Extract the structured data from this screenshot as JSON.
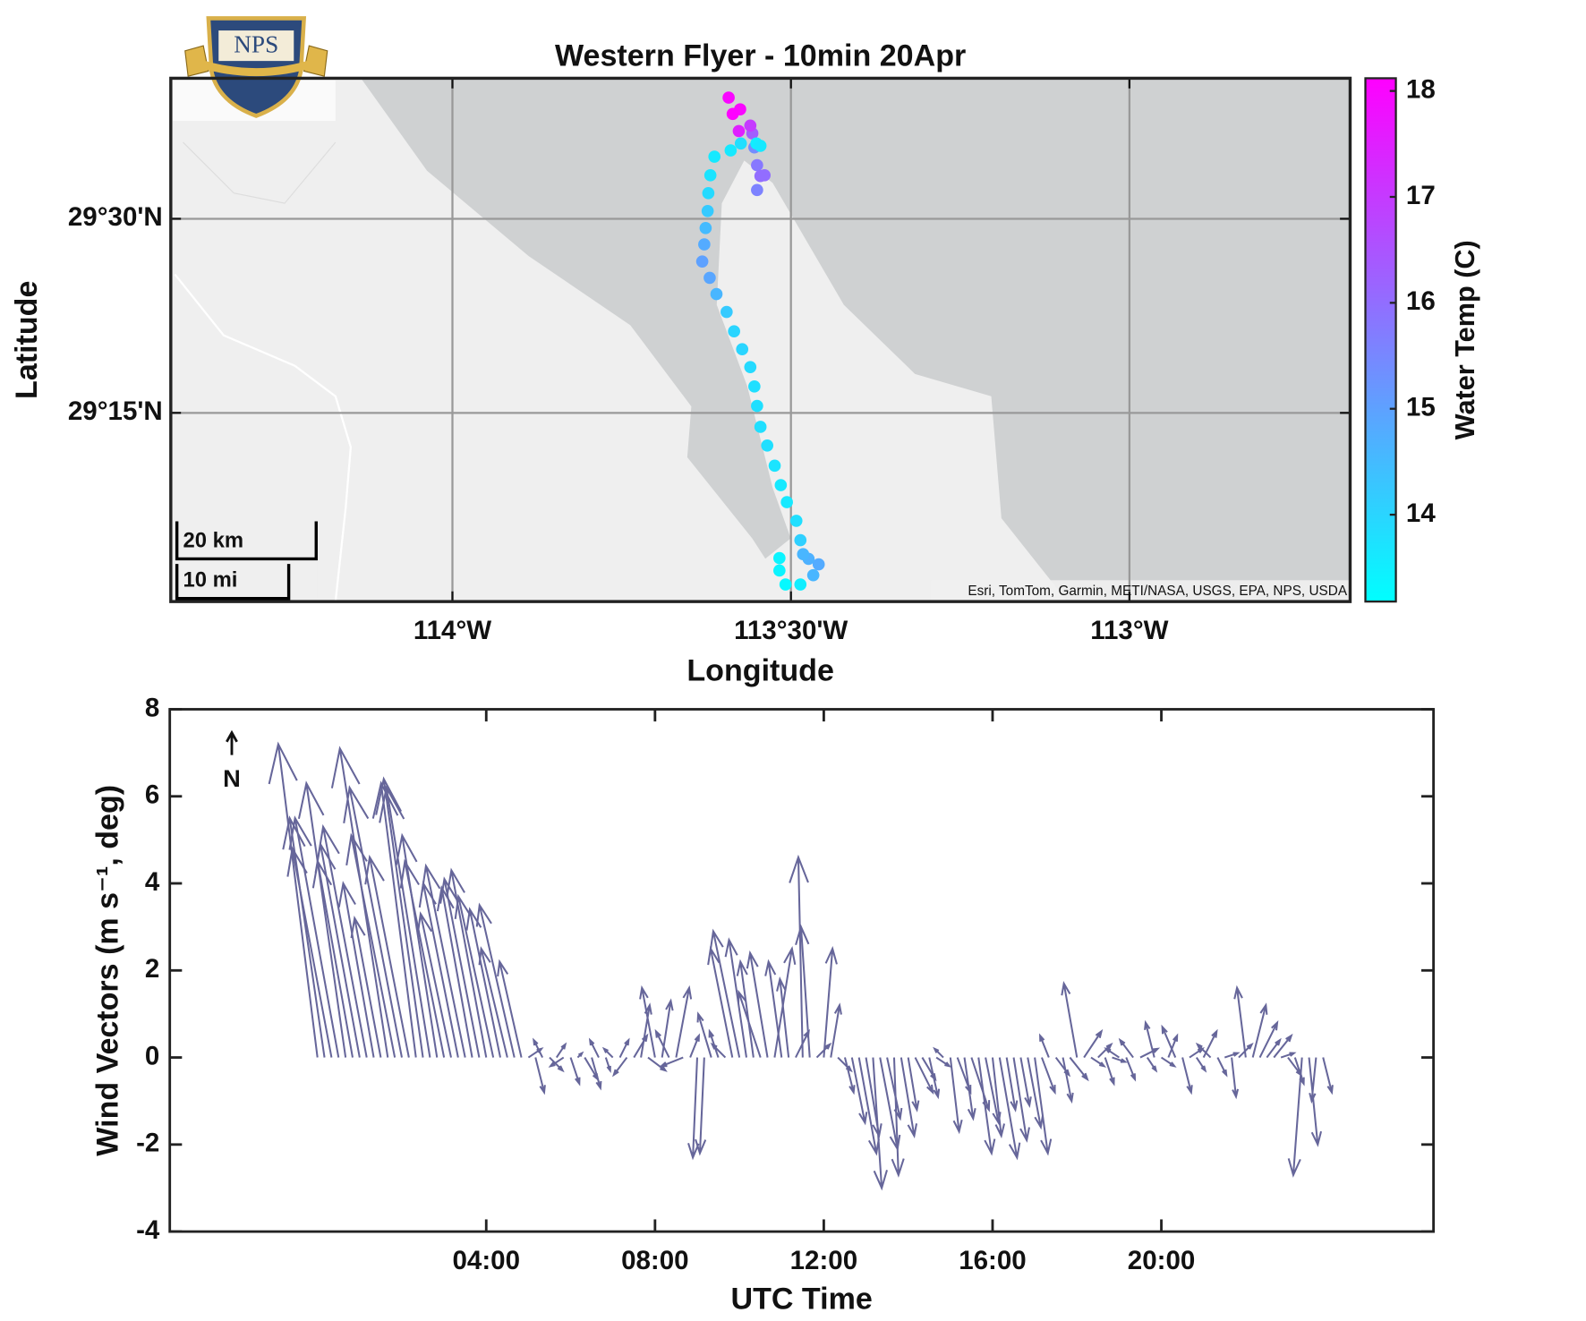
{
  "logo": {
    "text": "NPS"
  },
  "chart_data": [
    {
      "type": "scatter",
      "title": "Western Flyer - 10min 20Apr",
      "xlabel": "Longitude",
      "ylabel": "Latitude",
      "colorbar_label": "Water Temp (C)",
      "x": [
        -113.508,
        -113.486,
        -113.517,
        -113.517,
        -113.467,
        -113.459,
        -113.474,
        -113.482,
        -113.486,
        -113.492,
        -113.506,
        -113.515,
        -113.524,
        -113.535,
        -113.545,
        -113.55,
        -113.554,
        -113.56,
        -113.572,
        -113.584,
        -113.595,
        -113.61,
        -113.62,
        -113.631,
        -113.628,
        -113.626,
        -113.623,
        -113.622,
        -113.619,
        -113.613,
        -113.589,
        -113.574,
        -113.554,
        -113.55,
        -113.545,
        -113.539,
        -113.55,
        -113.557,
        -113.551,
        -113.545,
        -113.56,
        -113.577,
        -113.575,
        -113.586,
        -113.592
      ],
      "y": [
        29.029,
        29.029,
        29.047,
        29.063,
        29.041,
        29.055,
        29.062,
        29.068,
        29.086,
        29.111,
        29.135,
        29.157,
        29.182,
        29.208,
        29.232,
        29.259,
        29.284,
        29.309,
        29.332,
        29.355,
        29.38,
        29.403,
        29.424,
        29.445,
        29.467,
        29.488,
        29.51,
        29.533,
        29.556,
        29.58,
        29.588,
        29.597,
        29.592,
        29.569,
        29.555,
        29.556,
        29.537,
        29.61,
        29.597,
        29.594,
        29.62,
        29.613,
        29.641,
        29.635,
        29.656
      ],
      "values": [
        13.3,
        13.5,
        13.4,
        13.4,
        14.6,
        14.8,
        14.7,
        14.6,
        14.1,
        13.8,
        13.6,
        13.6,
        13.7,
        13.8,
        13.8,
        13.8,
        13.8,
        13.9,
        14.0,
        14.0,
        14.2,
        14.6,
        14.9,
        15.0,
        14.8,
        14.5,
        14.2,
        13.9,
        13.7,
        13.6,
        13.6,
        13.8,
        15.4,
        15.8,
        16.0,
        16.0,
        15.6,
        16.3,
        13.5,
        13.6,
        17.0,
        17.5,
        18.0,
        18.1,
        18.0
      ],
      "colormap": [
        "#00ffff",
        "#ff00ff"
      ],
      "clim": [
        13.18,
        18.12
      ],
      "cticks": [
        14,
        15,
        16,
        17,
        18
      ],
      "xlim": [
        -114.416,
        -112.674
      ],
      "ylim": [
        29.007,
        29.681
      ],
      "xticks": [
        {
          "value": -114,
          "label": "114°W"
        },
        {
          "value": -113.5,
          "label": "113°30'W"
        },
        {
          "value": -113,
          "label": "113°W"
        }
      ],
      "yticks": [
        {
          "value": 29.25,
          "label": "29°15'N"
        },
        {
          "value": 29.5,
          "label": "29°30'N"
        }
      ],
      "grid": true,
      "scale_bar": [
        "20 km",
        "10 mi"
      ],
      "attribution": "Esri, TomTom, Garmin, METI/NASA, USGS, EPA, NPS, USDA"
    },
    {
      "type": "quiver",
      "xlabel": "UTC Time",
      "ylabel": "Wind Vectors (m s⁻¹, deg)",
      "annotation": "N",
      "color": "#66669a",
      "x": [
        0,
        10,
        20,
        30,
        40,
        50,
        60,
        70,
        80,
        90,
        100,
        110,
        120,
        130,
        140,
        150,
        160,
        170,
        180,
        190,
        200,
        210,
        220,
        230,
        240,
        250,
        260,
        270,
        280,
        290,
        300,
        310,
        320,
        330,
        340,
        350,
        360,
        370,
        380,
        390,
        400,
        410,
        420,
        430,
        440,
        450,
        460,
        470,
        480,
        490,
        500,
        510,
        520,
        530,
        540,
        550,
        560,
        570,
        580,
        590,
        600,
        610,
        620,
        630,
        640,
        650,
        660,
        670,
        680,
        690,
        700,
        710,
        720,
        730,
        740,
        750,
        760,
        770,
        780,
        790,
        800,
        810,
        820,
        830,
        840,
        850,
        860,
        870,
        880,
        890,
        900,
        910,
        920,
        930,
        940,
        950,
        960,
        970,
        980,
        990,
        1000,
        1010,
        1020,
        1030,
        1040,
        1050,
        1060,
        1070,
        1080,
        1090,
        1100,
        1110,
        1120,
        1130,
        1140,
        1150,
        1160,
        1170,
        1180,
        1190,
        1200,
        1210,
        1220,
        1230,
        1240,
        1250,
        1260,
        1270,
        1280,
        1290,
        1300,
        1310,
        1320,
        1330,
        1340,
        1350,
        1360,
        1370,
        1380,
        1390,
        1400,
        1410,
        1420,
        1430
      ],
      "u": [
        -0.9,
        -0.8,
        -0.9,
        -1.0,
        -0.9,
        -0.8,
        -0.9,
        -1.0,
        -0.7,
        -0.6,
        -1.1,
        -1.0,
        -1.2,
        -0.9,
        -0.8,
        -0.9,
        -1.0,
        -0.8,
        -0.9,
        -0.7,
        -0.8,
        -0.9,
        -0.7,
        -0.8,
        -0.8,
        -0.8,
        -0.7,
        -0.6,
        -0.8,
        -0.5,
        0.3,
        0.2,
        -0.2,
        0.3,
        0.2,
        -0.3,
        0.2,
        0.1,
        0.3,
        0.2,
        -0.2,
        0.1,
        -0.2,
        0.2,
        -0.3,
        0.3,
        0.2,
        0.4,
        -0.3,
        0.2,
        -0.3,
        0.3,
        -0.5,
        0.2,
        -0.1,
        -0.1,
        -0.3,
        -0.2,
        -0.3,
        -0.5,
        -0.6,
        -0.4,
        -0.3,
        -0.5,
        -0.4,
        0.4,
        -0.3,
        -0.2,
        0.3,
        -0.1,
        -0.2,
        0.3,
        0.2,
        0.2,
        0.3,
        0.2,
        0.3,
        0.4,
        0.3,
        0.2,
        0.4,
        0.3,
        0.1,
        0.3,
        0.2,
        0.4,
        0.3,
        0.2,
        0.3,
        -0.2,
        0.2,
        0.3,
        0.2,
        0.4,
        0.3,
        0.3,
        0.2,
        0.4,
        0.2,
        0.3,
        0.2,
        0.3,
        0.3,
        0.3,
        -0.2,
        0.3,
        0.2,
        0.4,
        -0.3,
        0.4,
        0.3,
        0.3,
        0.2,
        0.3,
        -0.3,
        0.2,
        -0.3,
        0.4,
        0.2,
        -0.2,
        0.3,
        0.2,
        -0.3,
        0.2,
        0.3,
        0.2,
        0.3,
        -0.3,
        0.2,
        0.3,
        0.1,
        0.3,
        -0.2,
        0.3,
        0.4,
        0.3,
        0.4,
        0.3,
        0.3,
        0.2,
        -0.2,
        0.2,
        -0.1,
        0.2
      ],
      "v": [
        7.2,
        5.5,
        4.8,
        5.5,
        6.3,
        4.5,
        4.9,
        5.3,
        4.0,
        3.2,
        7.1,
        5.1,
        6.2,
        4.6,
        6.3,
        6.4,
        6.2,
        5.1,
        4.5,
        3.3,
        4.0,
        4.4,
        3.9,
        4.1,
        4.3,
        3.7,
        3.4,
        2.5,
        3.5,
        2.2,
        0.2,
        -0.8,
        0.4,
        -0.3,
        0.3,
        -0.2,
        -0.6,
        0.1,
        -0.5,
        -0.7,
        0.4,
        -0.3,
        0.2,
        0.4,
        -0.4,
        0.5,
        1.2,
        -0.3,
        1.6,
        1.3,
        0.6,
        1.6,
        -0.2,
        0.5,
        -2.3,
        -2.2,
        1.0,
        0.6,
        0.3,
        2.5,
        2.9,
        2.7,
        2.2,
        1.5,
        2.4,
        2.5,
        2.2,
        1.8,
        0.6,
        4.6,
        3.0,
        0.3,
        2.5,
        1.2,
        -0.3,
        -0.8,
        -1.5,
        -2.2,
        -1.8,
        -3.0,
        -2.1,
        -1.4,
        -2.7,
        -1.8,
        -1.2,
        -0.8,
        -0.5,
        -0.9,
        -0.2,
        0.2,
        -1.7,
        -0.8,
        -1.4,
        -1.2,
        -2.2,
        -1.5,
        -1.8,
        -2.3,
        -1.2,
        -1.9,
        -1.1,
        -1.6,
        -2.2,
        -0.8,
        0.5,
        -0.4,
        -1.0,
        -0.5,
        1.7,
        0.6,
        -0.2,
        0.3,
        -0.6,
        -0.1,
        0.2,
        -0.5,
        0.4,
        0.2,
        -0.3,
        0.8,
        -0.2,
        0.5,
        0.7,
        -0.8,
        0.2,
        -0.3,
        0.6,
        0.3,
        -0.4,
        0.1,
        -0.9,
        0.3,
        1.6,
        1.2,
        0.8,
        0.4,
        0.5,
        0.1,
        -0.4,
        -0.6,
        -2.7,
        -2.0,
        -1.0,
        -0.8
      ],
      "xlim": [
        -210,
        1587
      ],
      "ylim": [
        -4,
        8
      ],
      "xticks": [
        {
          "value": 240,
          "label": "04:00"
        },
        {
          "value": 480,
          "label": "08:00"
        },
        {
          "value": 720,
          "label": "12:00"
        },
        {
          "value": 960,
          "label": "16:00"
        },
        {
          "value": 1200,
          "label": "20:00"
        }
      ],
      "yticks": [
        -4,
        -2,
        0,
        2,
        4,
        6,
        8
      ]
    }
  ]
}
